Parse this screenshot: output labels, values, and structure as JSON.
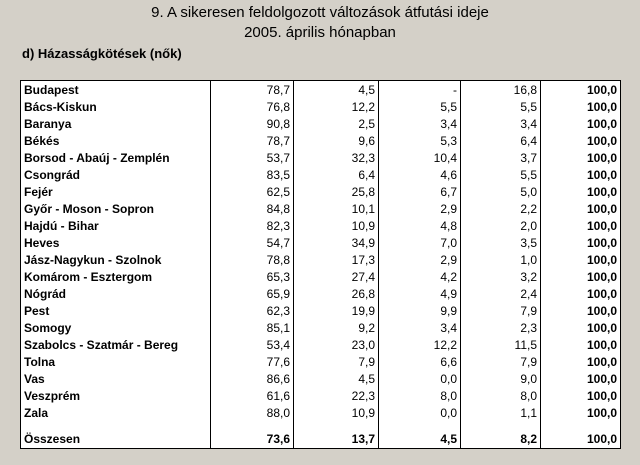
{
  "header": {
    "title_line1": "9. A sikeresen feldolgozott változások átfutási ideje",
    "title_line2": "2005. április  hónapban",
    "subtitle": "d) Házasságkötések (nők)"
  },
  "table": {
    "rows": [
      [
        "Budapest",
        "78,7",
        "4,5",
        "-",
        "16,8",
        "100,0"
      ],
      [
        "Bács-Kiskun",
        "76,8",
        "12,2",
        "5,5",
        "5,5",
        "100,0"
      ],
      [
        "Baranya",
        "90,8",
        "2,5",
        "3,4",
        "3,4",
        "100,0"
      ],
      [
        "Békés",
        "78,7",
        "9,6",
        "5,3",
        "6,4",
        "100,0"
      ],
      [
        "Borsod - Abaúj - Zemplén",
        "53,7",
        "32,3",
        "10,4",
        "3,7",
        "100,0"
      ],
      [
        "Csongrád",
        "83,5",
        "6,4",
        "4,6",
        "5,5",
        "100,0"
      ],
      [
        "Fejér",
        "62,5",
        "25,8",
        "6,7",
        "5,0",
        "100,0"
      ],
      [
        "Győr - Moson - Sopron",
        "84,8",
        "10,1",
        "2,9",
        "2,2",
        "100,0"
      ],
      [
        "Hajdú - Bihar",
        "82,3",
        "10,9",
        "4,8",
        "2,0",
        "100,0"
      ],
      [
        "Heves",
        "54,7",
        "34,9",
        "7,0",
        "3,5",
        "100,0"
      ],
      [
        "Jász-Nagykun - Szolnok",
        "78,8",
        "17,3",
        "2,9",
        "1,0",
        "100,0"
      ],
      [
        "Komárom - Esztergom",
        "65,3",
        "27,4",
        "4,2",
        "3,2",
        "100,0"
      ],
      [
        "Nógrád",
        "65,9",
        "26,8",
        "4,9",
        "2,4",
        "100,0"
      ],
      [
        "Pest",
        "62,3",
        "19,9",
        "9,9",
        "7,9",
        "100,0"
      ],
      [
        "Somogy",
        "85,1",
        "9,2",
        "3,4",
        "2,3",
        "100,0"
      ],
      [
        "Szabolcs - Szatmár - Bereg",
        "53,4",
        "23,0",
        "12,2",
        "11,5",
        "100,0"
      ],
      [
        "Tolna",
        "77,6",
        "7,9",
        "6,6",
        "7,9",
        "100,0"
      ],
      [
        "Vas",
        "86,6",
        "4,5",
        "0,0",
        "9,0",
        "100,0"
      ],
      [
        "Veszprém",
        "61,6",
        "22,3",
        "8,0",
        "8,0",
        "100,0"
      ],
      [
        "Zala",
        "88,0",
        "10,9",
        "0,0",
        "1,1",
        "100,0"
      ]
    ],
    "total": [
      "Összesen",
      "73,6",
      "13,7",
      "4,5",
      "8,2",
      "100,0"
    ]
  }
}
